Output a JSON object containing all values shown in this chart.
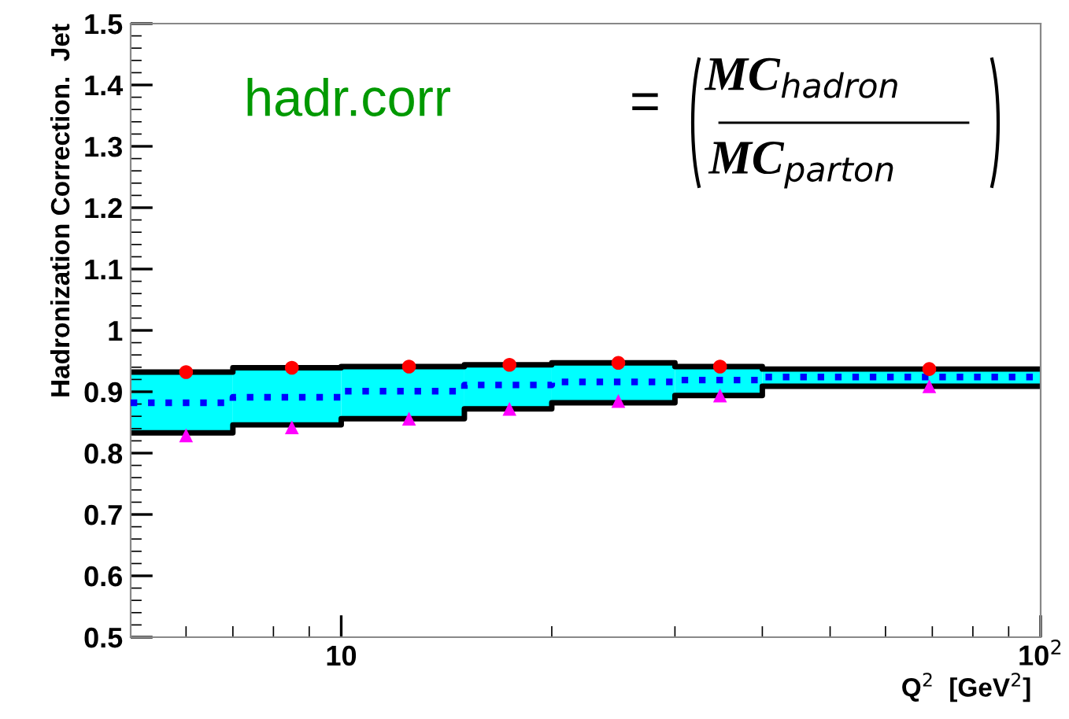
{
  "chart_data": {
    "type": "step",
    "xlabel": "Q$^{2}$  [GeV$^{2}$]",
    "ylabel": "Hadronization Correction.  Jet",
    "annotations": [
      "hadr.corr",
      "=",
      "MC$_{hadron}$",
      "MC$_{parton}$"
    ],
    "log": "x",
    "xlim": [
      5,
      100
    ],
    "xticks": [
      10,
      {
        "value": 100,
        "label": "10$^{2}$"
      }
    ],
    "ylim": [
      0.5,
      1.5
    ],
    "yticks": [
      0.5,
      0.6,
      0.7,
      0.8,
      0.9,
      1,
      1.1,
      1.2,
      1.3,
      1.4,
      1.5
    ],
    "grid": false,
    "series": [
      {
        "type": "step",
        "color": "#0000ff",
        "colors": [
          "#00ffff",
          "#00ffff",
          "#00ffff",
          "#00ffff",
          "#00ffff",
          "#00ffff",
          "#00ffff",
          "#00ffff"
        ],
        "line_style": "dotted",
        "x": [
          5,
          7,
          10,
          15,
          20,
          30,
          40,
          100
        ],
        "values": [
          0.882,
          0.891,
          0.901,
          0.911,
          0.916,
          0.919,
          0.924,
          0.924
        ],
        "lower": [
          0.833,
          0.846,
          0.856,
          0.872,
          0.882,
          0.894,
          0.909,
          0.909
        ],
        "upper": [
          0.932,
          0.939,
          0.941,
          0.944,
          0.947,
          0.941,
          0.937,
          0.937
        ]
      },
      {
        "color": "#000000",
        "x": [
          5,
          7,
          10,
          15,
          20,
          30,
          40,
          100
        ],
        "values": [
          0.932,
          0.939,
          0.941,
          0.944,
          0.947,
          0.941,
          0.937,
          0.937
        ]
      },
      {
        "color": "#000000",
        "x": [
          5,
          7,
          10,
          15,
          20,
          30,
          40,
          100
        ],
        "values": [
          0.833,
          0.846,
          0.856,
          0.872,
          0.882,
          0.894,
          0.909,
          0.909
        ]
      },
      {
        "type": "scatter",
        "color": "#ff0000",
        "marker": "circle",
        "x": [
          6.0,
          8.5,
          12.5,
          17.4,
          24.9,
          34.8,
          69.3
        ],
        "values": [
          0.932,
          0.939,
          0.941,
          0.944,
          0.947,
          0.941,
          0.937
        ]
      },
      {
        "type": "scatter",
        "color": "#ff00ff",
        "marker": "triangle",
        "x": [
          6.0,
          8.5,
          12.5,
          17.4,
          24.9,
          34.8,
          69.3
        ],
        "values": [
          0.829,
          0.842,
          0.856,
          0.872,
          0.885,
          0.894,
          0.909
        ]
      }
    ]
  }
}
